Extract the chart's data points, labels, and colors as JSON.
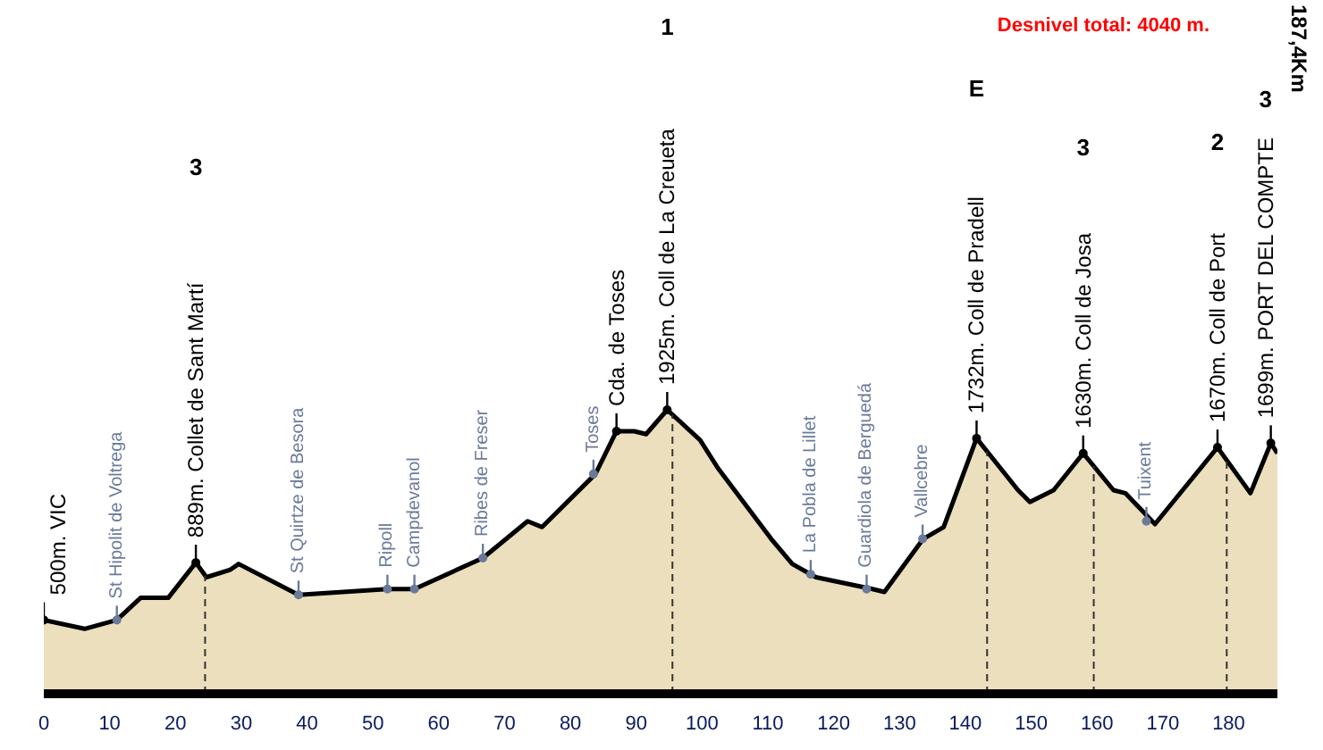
{
  "chart_data": {
    "type": "area",
    "grid": false,
    "tick_labels": "x",
    "x": [
      0,
      6.2,
      11.1,
      14.7,
      18.9,
      23.1,
      24.7,
      28.3,
      29.6,
      38.7,
      52.2,
      56.3,
      66.7,
      73.5,
      75.7,
      83.8,
      87.0,
      89.7,
      91.5,
      94.7,
      99.7,
      102.4,
      110.5,
      113.7,
      117.3,
      125.9,
      127.7,
      133.6,
      136.7,
      141.7,
      148.0,
      149.8,
      153.4,
      157.9,
      162.5,
      164.3,
      168.8,
      178.3,
      183.3,
      186.4,
      187.4
    ],
    "series": [
      {
        "color": "#ecdfbd",
        "values": [
          500,
          440,
          500,
          650,
          650,
          889,
          790,
          840,
          880,
          670,
          710,
          710,
          920,
          1170,
          1130,
          1490,
          1780,
          1780,
          1760,
          1925,
          1720,
          1530,
          1050,
          880,
          790,
          710,
          690,
          1050,
          1130,
          1732,
          1380,
          1300,
          1380,
          1630,
          1380,
          1360,
          1150,
          1670,
          1360,
          1699,
          1630
        ]
      },
      {
        "type": "scatter",
        "marker": "circle",
        "color": "#000000",
        "x": [
          0,
          23.1,
          94.7,
          141.7,
          157.9,
          178.3,
          186.4
        ],
        "values": [
          500,
          889,
          1925,
          1732,
          1630,
          1670,
          1699
        ],
        "value_labels": [
          "500m. VIC",
          "889m. Collet de Sant Martí",
          "1925m. Coll de La Creueta",
          "1732m. Coll de Pradell",
          "1630m. Coll de Josa",
          "1670m. Coll de Port",
          "1699m. PORT DEL COMPTE"
        ]
      },
      {
        "type": "scatter",
        "marker": "circle",
        "color": "#000000",
        "x": [
          87.0
        ],
        "values": [
          1780
        ],
        "value_labels": [
          "Cda. de Toses"
        ]
      },
      {
        "type": "scatter",
        "marker": "circle",
        "color": "#6a7a9a",
        "x": [
          11.1,
          38.7,
          52.2,
          56.3,
          66.7,
          83.5,
          116.5,
          125.0,
          133.5,
          167.5
        ],
        "values": [
          500,
          670,
          710,
          710,
          920,
          1490,
          810,
          710,
          1050,
          1170
        ],
        "value_labels": [
          "St Hipolit de Voltrega",
          "St Quirtze de Besora",
          "Ripoll",
          "Campdevanol",
          "Ribes de Freser",
          "Toses",
          "La Pobla de Lillet",
          "Guardiola de Berguedá",
          "Vallcebre",
          "Tuixent"
        ]
      }
    ],
    "xlim": [
      0,
      187.4
    ],
    "xticks": [
      0,
      10,
      20,
      30,
      40,
      50,
      60,
      70,
      80,
      90,
      100,
      110,
      120,
      130,
      140,
      150,
      160,
      170,
      180
    ],
    "ref_lines": [
      {
        "axis": "x",
        "value": 24.5,
        "line_style": "dashed"
      },
      {
        "axis": "x",
        "value": 95.5,
        "line_style": "dashed"
      },
      {
        "axis": "x",
        "value": 143.3,
        "line_style": "dashed"
      },
      {
        "axis": "x",
        "value": 159.5,
        "line_style": "dashed"
      },
      {
        "axis": "x",
        "value": 179.7,
        "line_style": "dashed"
      }
    ],
    "annotations": [
      "Desnivel total: 4040 m.",
      "3",
      "1",
      "E",
      "3",
      "2",
      "3",
      "187,4Km"
    ]
  }
}
